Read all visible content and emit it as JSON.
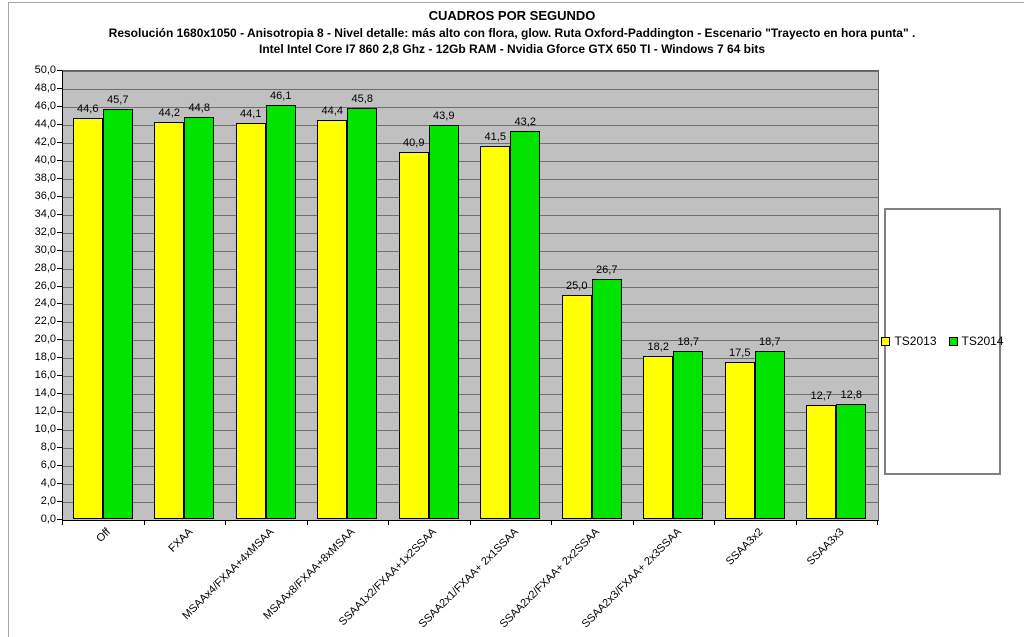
{
  "chart_data": {
    "type": "bar",
    "title": "CUADROS POR SEGUNDO",
    "subtitle1": "Resolución 1680x1050 - Anisotropia 8 - Nivel detalle: más alto con flora, glow. Ruta Oxford-Paddington - Escenario \"Trayecto en hora punta\" .",
    "subtitle2": "Intel Intel Core I7 860 2,8 Ghz - 12Gb RAM - Nvidia Gforce GTX 650 TI - Windows 7 64 bits",
    "categories": [
      "Off",
      "FXAA",
      "MSAAx4/FXAA+4xMSAA",
      "MSAAx8/FXAA+8xMSAA",
      "SSAA1x2/FXAA+1x2SSAA",
      "SSAA2x1/FXAA+ 2x1SSAA",
      "SSAA2x2/FXAA+ 2x2SSAA",
      "SSAA2x3/FXAA+ 2x3SSAA",
      "SSAA3x2",
      "SSAA3x3"
    ],
    "series": [
      {
        "name": "TS2013",
        "color": "#FFFF00",
        "values": [
          44.6,
          44.2,
          44.1,
          44.4,
          40.9,
          41.5,
          25.0,
          18.2,
          17.5,
          12.7
        ]
      },
      {
        "name": "TS2014",
        "color": "#00E400",
        "values": [
          45.7,
          44.8,
          46.1,
          45.8,
          43.9,
          43.2,
          26.7,
          18.7,
          18.7,
          12.8
        ]
      }
    ],
    "ylim": [
      0,
      50
    ],
    "ytick_step": 2,
    "decimal_separator": ",",
    "grid": true,
    "legend_position": "right",
    "plot_bg": "#C0C0C0",
    "gridline_color": "#6E6E6E",
    "value_labels": true
  }
}
